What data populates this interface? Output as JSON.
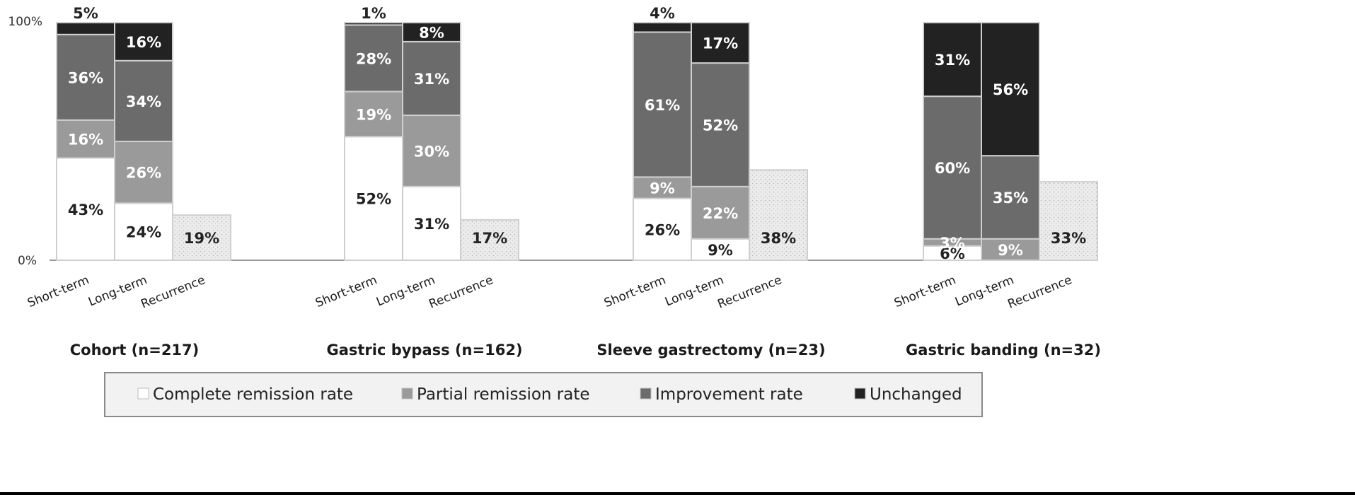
{
  "chart_data": {
    "type": "bar",
    "stacked": true,
    "percent": true,
    "ylim": [
      0,
      100
    ],
    "yticks": [
      "0%",
      "100%"
    ],
    "grid": false,
    "legend_position": "bottom",
    "colors": {
      "complete": "#ffffff",
      "partial": "#9a9a9a",
      "improvement": "#6b6b6b",
      "unchanged": "#222222",
      "recurrence": "#ececec",
      "outline": "#cfcfcf",
      "axis": "#9a9a9a"
    },
    "legend": [
      {
        "key": "complete",
        "label": "Complete  remission rate"
      },
      {
        "key": "partial",
        "label": "Partial remission rate"
      },
      {
        "key": "improvement",
        "label": "Improvement rate"
      },
      {
        "key": "unchanged",
        "label": "Unchanged"
      }
    ],
    "groups": [
      {
        "name": "Cohort (n=217)",
        "bars": [
          {
            "category": "Short-term",
            "segments": [
              {
                "key": "complete",
                "value": 43,
                "label": "43%"
              },
              {
                "key": "partial",
                "value": 16,
                "label": "16%"
              },
              {
                "key": "improvement",
                "value": 36,
                "label": "36%"
              },
              {
                "key": "unchanged",
                "value": 5,
                "label": "5%"
              }
            ]
          },
          {
            "category": "Long-term",
            "segments": [
              {
                "key": "complete",
                "value": 24,
                "label": "24%"
              },
              {
                "key": "partial",
                "value": 26,
                "label": "26%"
              },
              {
                "key": "improvement",
                "value": 34,
                "label": "34%"
              },
              {
                "key": "unchanged",
                "value": 16,
                "label": "16%"
              }
            ]
          },
          {
            "category": "Recurrence",
            "segments": [
              {
                "key": "recurrence",
                "value": 19,
                "label": "19%"
              }
            ]
          }
        ]
      },
      {
        "name": "Gastric bypass (n=162)",
        "bars": [
          {
            "category": "Short-term",
            "segments": [
              {
                "key": "complete",
                "value": 52,
                "label": "52%"
              },
              {
                "key": "partial",
                "value": 19,
                "label": "19%"
              },
              {
                "key": "improvement",
                "value": 28,
                "label": "28%"
              },
              {
                "key": "unchanged",
                "value": 1,
                "label": "1%"
              }
            ]
          },
          {
            "category": "Long-term",
            "segments": [
              {
                "key": "complete",
                "value": 31,
                "label": "31%"
              },
              {
                "key": "partial",
                "value": 30,
                "label": "30%"
              },
              {
                "key": "improvement",
                "value": 31,
                "label": "31%"
              },
              {
                "key": "unchanged",
                "value": 8,
                "label": "8%"
              }
            ]
          },
          {
            "category": "Recurrence",
            "segments": [
              {
                "key": "recurrence",
                "value": 17,
                "label": "17%"
              }
            ]
          }
        ]
      },
      {
        "name": "Sleeve gastrectomy (n=23)",
        "bars": [
          {
            "category": "Short-term",
            "segments": [
              {
                "key": "complete",
                "value": 26,
                "label": "26%"
              },
              {
                "key": "partial",
                "value": 9,
                "label": "9%"
              },
              {
                "key": "improvement",
                "value": 61,
                "label": "61%"
              },
              {
                "key": "unchanged",
                "value": 4,
                "label": "4%"
              }
            ]
          },
          {
            "category": "Long-term",
            "segments": [
              {
                "key": "complete",
                "value": 9,
                "label": "9%"
              },
              {
                "key": "partial",
                "value": 22,
                "label": "22%"
              },
              {
                "key": "improvement",
                "value": 52,
                "label": "52%"
              },
              {
                "key": "unchanged",
                "value": 17,
                "label": "17%"
              }
            ]
          },
          {
            "category": "Recurrence",
            "segments": [
              {
                "key": "recurrence",
                "value": 38,
                "label": "38%"
              }
            ]
          }
        ]
      },
      {
        "name": "Gastric banding (n=32)",
        "bars": [
          {
            "category": "Short-term",
            "segments": [
              {
                "key": "complete",
                "value": 6,
                "label": "6%"
              },
              {
                "key": "partial",
                "value": 3,
                "label": "3%"
              },
              {
                "key": "improvement",
                "value": 60,
                "label": "60%"
              },
              {
                "key": "unchanged",
                "value": 31,
                "label": "31%"
              }
            ]
          },
          {
            "category": "Long-term",
            "segments": [
              {
                "key": "complete",
                "value": 0,
                "label": ""
              },
              {
                "key": "partial",
                "value": 9,
                "label": "9%"
              },
              {
                "key": "improvement",
                "value": 35,
                "label": "35%"
              },
              {
                "key": "unchanged",
                "value": 56,
                "label": "56%"
              }
            ]
          },
          {
            "category": "Recurrence",
            "segments": [
              {
                "key": "recurrence",
                "value": 33,
                "label": "33%"
              }
            ]
          }
        ]
      }
    ]
  }
}
